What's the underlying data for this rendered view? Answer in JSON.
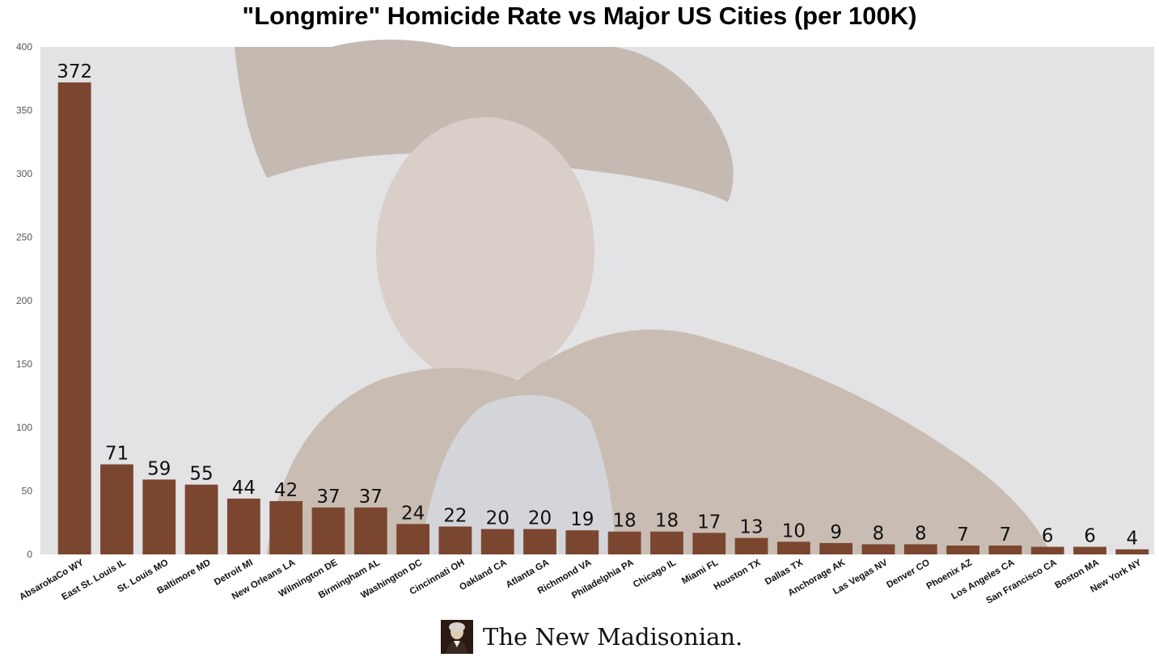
{
  "chart_data": {
    "type": "bar",
    "title": "\"Longmire\" Homicide Rate vs Major US Cities (per 100K)",
    "xlabel": "",
    "ylabel": "",
    "ylim": [
      0,
      400
    ],
    "yticks": [
      0,
      50,
      100,
      150,
      200,
      250,
      300,
      350,
      400
    ],
    "bar_color": "#7b4630",
    "categories": [
      "AbsarokaCo WY",
      "East St. Louis IL",
      "St. Louis MO",
      "Baltimore MD",
      "Detroit MI",
      "New Orleans LA",
      "Wilmington DE",
      "Birmingham AL",
      "Washington DC",
      "Cincinnati OH",
      "Oakland CA",
      "Atlanta GA",
      "Richmond VA",
      "Philadelphia PA",
      "Chicago IL",
      "Miami FL",
      "Houston TX",
      "Dallas TX",
      "Anchorage AK",
      "Las Vegas NV",
      "Denver CO",
      "Phoenix AZ",
      "Los Angeles CA",
      "San Francisco CA",
      "Boston MA",
      "New York NY"
    ],
    "values": [
      372,
      71,
      59,
      55,
      44,
      42,
      37,
      37,
      24,
      22,
      20,
      20,
      19,
      18,
      18,
      17,
      13,
      10,
      9,
      8,
      8,
      7,
      7,
      6,
      6,
      4
    ]
  },
  "footer": {
    "brand": "The New Madisonian.",
    "logo_icon": "portrait-logo-icon"
  }
}
